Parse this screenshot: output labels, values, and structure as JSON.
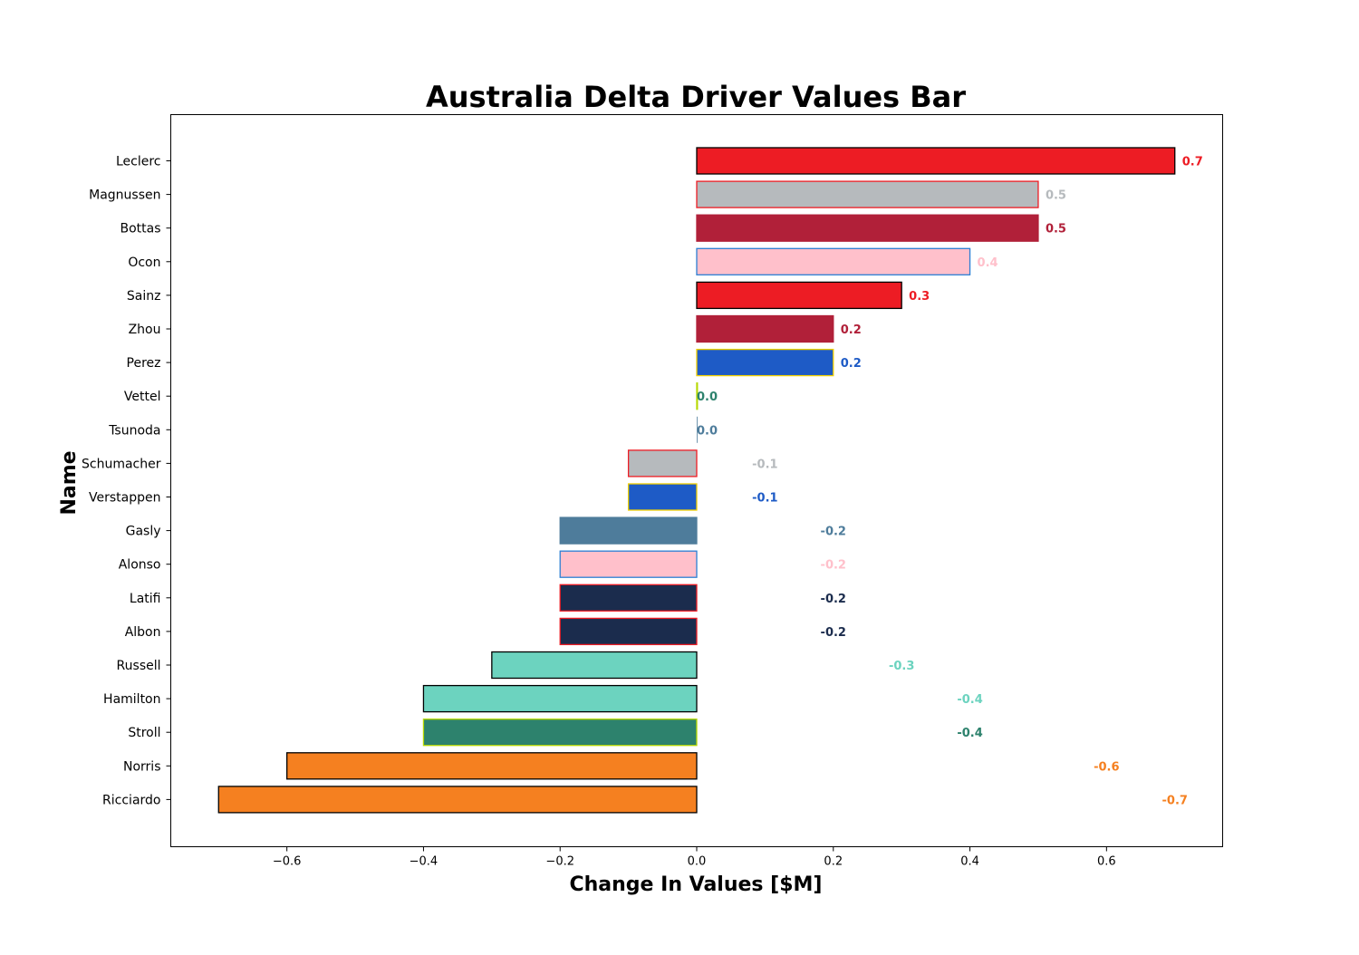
{
  "chart_data": {
    "type": "bar",
    "orientation": "horizontal",
    "title": "Australia Delta Driver Values Bar",
    "xlabel": "Change In Values [$M]",
    "ylabel": "Name",
    "xlim": [
      -0.77,
      0.77
    ],
    "xticks": [
      -0.6,
      -0.4,
      -0.2,
      0.0,
      0.2,
      0.4,
      0.6
    ],
    "xtick_labels": [
      "−0.6",
      "−0.4",
      "−0.2",
      "0.0",
      "0.2",
      "0.4",
      "0.6"
    ],
    "grid": false,
    "categories": [
      "Leclerc",
      "Magnussen",
      "Bottas",
      "Ocon",
      "Sainz",
      "Zhou",
      "Perez",
      "Vettel",
      "Tsunoda",
      "Schumacher",
      "Verstappen",
      "Gasly",
      "Alonso",
      "Latifi",
      "Albon",
      "Russell",
      "Hamilton",
      "Stroll",
      "Norris",
      "Ricciardo"
    ],
    "values": [
      0.7,
      0.5,
      0.5,
      0.4,
      0.3,
      0.2,
      0.2,
      0.0,
      0.0,
      -0.1,
      -0.1,
      -0.2,
      -0.2,
      -0.2,
      -0.2,
      -0.3,
      -0.4,
      -0.4,
      -0.6,
      -0.7
    ],
    "value_labels": [
      "0.7",
      "0.5",
      "0.5",
      "0.4",
      "0.3",
      "0.2",
      "0.2",
      "0.0",
      "0.0",
      "-0.1",
      "-0.1",
      "-0.2",
      "-0.2",
      "-0.2",
      "-0.2",
      "-0.3",
      "-0.4",
      "-0.4",
      "-0.6",
      "-0.7"
    ],
    "bar_colors": [
      "#ED1C24",
      "#B6BABD",
      "#B12039",
      "#FFC0CB",
      "#ED1C24",
      "#B12039",
      "#1E5BC6",
      "#2D826D",
      "#4E7C9B",
      "#B6BABD",
      "#1E5BC6",
      "#4E7C9B",
      "#FFC0CB",
      "#1B2C4D",
      "#1B2C4D",
      "#6CD3BF",
      "#6CD3BF",
      "#2D826D",
      "#F58020",
      "#F58020"
    ],
    "edge_colors": [
      "#000000",
      "#ED1C24",
      "#B12039",
      "#2B7FD4",
      "#000000",
      "#B12039",
      "#F0D000",
      "#B6D800",
      "#4E7C9B",
      "#ED1C24",
      "#F0D000",
      "#4E7C9B",
      "#2B7FD4",
      "#ED1C24",
      "#ED1C24",
      "#000000",
      "#000000",
      "#B6D800",
      "#000000",
      "#000000"
    ],
    "label_colors": [
      "#ED1C24",
      "#B6BABD",
      "#B12039",
      "#FFC0CB",
      "#ED1C24",
      "#B12039",
      "#1E5BC6",
      "#2D826D",
      "#4E7C9B",
      "#B6BABD",
      "#1E5BC6",
      "#4E7C9B",
      "#FFC0CB",
      "#1B2C4D",
      "#1B2C4D",
      "#6CD3BF",
      "#6CD3BF",
      "#2D826D",
      "#F58020",
      "#F58020"
    ]
  }
}
